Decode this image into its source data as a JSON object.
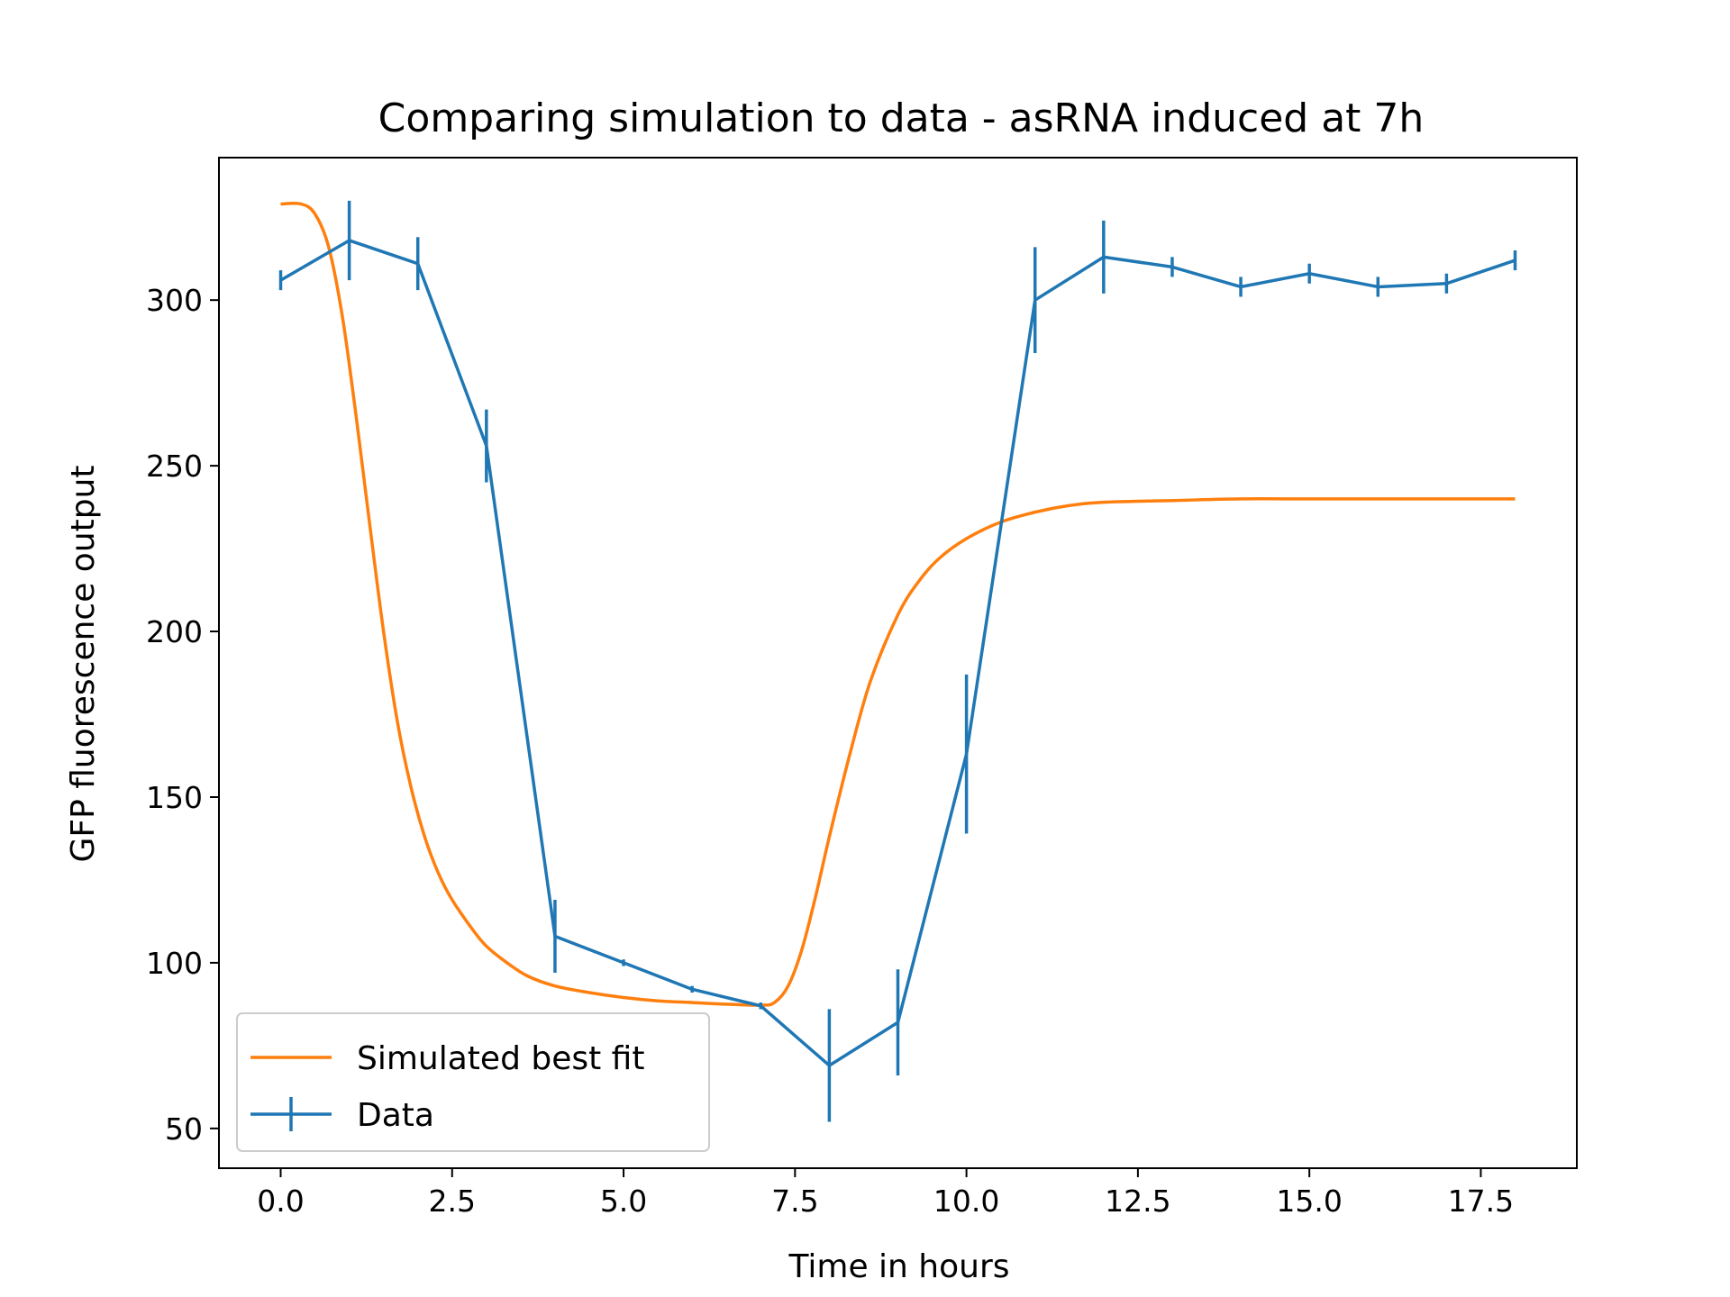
{
  "chart_data": {
    "type": "line",
    "title": "Comparing simulation to data - asRNA induced at 7h",
    "xlabel": "Time in hours",
    "ylabel": "GFP fluorescence output",
    "xlim": [
      -0.9,
      18.9
    ],
    "ylim": [
      38,
      343
    ],
    "xticks": [
      0.0,
      2.5,
      5.0,
      7.5,
      10.0,
      12.5,
      15.0,
      17.5
    ],
    "xtick_labels": [
      "0.0",
      "2.5",
      "5.0",
      "7.5",
      "10.0",
      "12.5",
      "15.0",
      "17.5"
    ],
    "yticks": [
      50,
      100,
      150,
      200,
      250,
      300
    ],
    "ytick_labels": [
      "50",
      "100",
      "150",
      "200",
      "250",
      "300"
    ],
    "grid": false,
    "legend_position": "lower-left",
    "colors": {
      "simulation": "#ff7f0e",
      "data": "#1f77b4"
    },
    "series": [
      {
        "name": "Simulated best fit",
        "type": "line",
        "color": "#ff7f0e",
        "x": [
          0,
          0.3,
          0.5,
          0.7,
          0.9,
          1.1,
          1.3,
          1.5,
          1.7,
          1.9,
          2.1,
          2.3,
          2.5,
          2.8,
          3.0,
          3.3,
          3.6,
          4.0,
          4.5,
          5.0,
          5.5,
          6.0,
          6.5,
          7.0,
          7.2,
          7.4,
          7.6,
          7.8,
          8.0,
          8.3,
          8.6,
          9.0,
          9.3,
          9.6,
          10.0,
          10.5,
          11.0,
          11.5,
          12.0,
          13.0,
          14.0,
          15.0,
          16.0,
          17.0,
          18.0
        ],
        "y": [
          329,
          329,
          326,
          316,
          295,
          265,
          232,
          200,
          173,
          153,
          138,
          127,
          119,
          110,
          105,
          100,
          96,
          93,
          91,
          89.5,
          88.5,
          88,
          87.5,
          87.2,
          88,
          93,
          104,
          120,
          138,
          163,
          185,
          205,
          215,
          222,
          228,
          233,
          236,
          238,
          239,
          239.5,
          240,
          240,
          240,
          240,
          240
        ]
      },
      {
        "name": "Data",
        "type": "errorbar",
        "color": "#1f77b4",
        "x": [
          0,
          1,
          2,
          3,
          4,
          5,
          6,
          7,
          8,
          9,
          10,
          11,
          12,
          13,
          14,
          15,
          16,
          17,
          18
        ],
        "y": [
          306,
          318,
          311,
          256,
          108,
          100,
          92,
          87,
          69,
          82,
          163,
          300,
          313,
          310,
          304,
          308,
          304,
          305,
          312
        ],
        "yerr": [
          3,
          12,
          8,
          11,
          11,
          1,
          1,
          1,
          17,
          16,
          24,
          16,
          11,
          3,
          3,
          3,
          3,
          3,
          3
        ]
      }
    ],
    "legend": [
      "Simulated best fit",
      "Data"
    ]
  }
}
